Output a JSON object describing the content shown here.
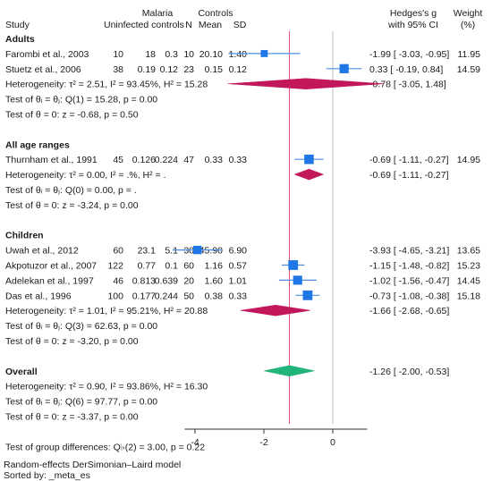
{
  "header": {
    "group1": "Malaria",
    "group2": "Controls",
    "study": "Study",
    "uninfected": "Uninfected controls",
    "n": "N",
    "mean": "Mean",
    "sd": "SD",
    "effect1": "Hedges's g",
    "effect2": "with 95% CI",
    "weight1": "Weight",
    "weight2": "(%)"
  },
  "footer": {
    "model": "Random-effects DerSimonian–Laird model",
    "sorted": "Sorted by: _meta_es"
  },
  "colors": {
    "study_marker": "#1f77e6",
    "subgroup_diamond": "#c2185b",
    "overall_diamond": "#22b47a",
    "overall_line": "#e0507a",
    "null_line": "#bfbfbf",
    "ci_line": "#4c8fe0"
  },
  "chart_data": {
    "type": "forest",
    "xlim": [
      -5,
      1.6
    ],
    "xticks": [
      "-4",
      "-2",
      "0"
    ],
    "null_value": 0,
    "overall_line_value": -1.26,
    "groups": [
      {
        "name": "Adults",
        "studies": [
          {
            "study": "Farombi et al., 2003",
            "n1": "10",
            "m1": "18",
            "sd1": "0.3",
            "n2": "10",
            "m2": "20.10",
            "sd2": "1.40",
            "g": -1.99,
            "lo": -3.03,
            "hi": -0.95,
            "ci_text": "-1.99 [ -3.03, -0.95]",
            "weight": "11.95"
          },
          {
            "study": "Stuetz et al., 2006",
            "n1": "38",
            "m1": "0.19",
            "sd1": "0.12",
            "n2": "23",
            "m2": "0.15",
            "sd2": "0.12",
            "g": 0.33,
            "lo": -0.19,
            "hi": 0.84,
            "ci_text": "0.33 [ -0.19,  0.84]",
            "weight": "14.59"
          }
        ],
        "heterogeneity": "Heterogeneity: τ² = 2.51, I² = 93.45%, H² = 15.28",
        "pooled": {
          "g": -0.78,
          "lo": -3.05,
          "hi": 1.48,
          "ci_text": "-0.78 [ -3.05,  1.48]"
        },
        "test_homog": "Test of θᵢ = θⱼ: Q(1) = 15.28, p = 0.00",
        "test_effect": "Test of θ = 0: z = -0.68, p = 0.50"
      },
      {
        "name": "All age ranges",
        "studies": [
          {
            "study": "Thurnham et al., 1991",
            "n1": "45",
            "m1": "0.126",
            "sd1": "0.224",
            "n2": "47",
            "m2": "0.33",
            "sd2": "0.33",
            "g": -0.69,
            "lo": -1.11,
            "hi": -0.27,
            "ci_text": "-0.69 [ -1.11, -0.27]",
            "weight": "14.95"
          }
        ],
        "heterogeneity": "Heterogeneity: τ² = 0.00, I² = .%, H² = .",
        "pooled": {
          "g": -0.69,
          "lo": -1.11,
          "hi": -0.27,
          "ci_text": "-0.69 [ -1.11, -0.27]"
        },
        "test_homog": "Test of θᵢ = θⱼ: Q(0) = 0.00, p = .",
        "test_effect": "Test of θ = 0: z = -3.24, p = 0.00"
      },
      {
        "name": "Children",
        "studies": [
          {
            "study": "Uwah et al., 2012",
            "n1": "60",
            "m1": "23.1",
            "sd1": "5.1",
            "n2": "30",
            "m2": "45.90",
            "sd2": "6.90",
            "g": -3.93,
            "lo": -4.65,
            "hi": -3.21,
            "ci_text": "-3.93 [ -4.65, -3.21]",
            "weight": "13.65"
          },
          {
            "study": "Akpotuzor et al., 2007",
            "n1": "122",
            "m1": "0.77",
            "sd1": "0.1",
            "n2": "60",
            "m2": "1.16",
            "sd2": "0.57",
            "g": -1.15,
            "lo": -1.48,
            "hi": -0.82,
            "ci_text": "-1.15 [ -1.48, -0.82]",
            "weight": "15.23"
          },
          {
            "study": "Adelekan et al., 1997",
            "n1": "46",
            "m1": "0.813",
            "sd1": "0.639",
            "n2": "20",
            "m2": "1.60",
            "sd2": "1.01",
            "g": -1.02,
            "lo": -1.56,
            "hi": -0.47,
            "ci_text": "-1.02 [ -1.56, -0.47]",
            "weight": "14.45"
          },
          {
            "study": "Das et al., 1996",
            "n1": "100",
            "m1": "0.177",
            "sd1": "0.244",
            "n2": "50",
            "m2": "0.38",
            "sd2": "0.33",
            "g": -0.73,
            "lo": -1.08,
            "hi": -0.38,
            "ci_text": "-0.73 [ -1.08, -0.38]",
            "weight": "15.18"
          }
        ],
        "heterogeneity": "Heterogeneity: τ² = 1.01, I² = 95.21%, H² = 20.88",
        "pooled": {
          "g": -1.66,
          "lo": -2.68,
          "hi": -0.65,
          "ci_text": "-1.66 [ -2.68, -0.65]"
        },
        "test_homog": "Test of θᵢ = θⱼ: Q(3) = 62.63, p = 0.00",
        "test_effect": "Test of θ = 0: z = -3.20, p = 0.00"
      }
    ],
    "overall": {
      "name": "Overall",
      "heterogeneity": "Heterogeneity: τ² = 0.90, I² = 93.86%, H² = 16.30",
      "pooled": {
        "g": -1.26,
        "lo": -2.0,
        "hi": -0.53,
        "ci_text": "-1.26 [ -2.00, -0.53]"
      },
      "test_homog": "Test of θᵢ = θⱼ: Q(6) = 97.77, p = 0.00",
      "test_effect": "Test of θ = 0: z = -3.37, p = 0.00"
    },
    "group_differences": "Test of group differences: Q♭(2) = 3.00, p = 0.22"
  }
}
